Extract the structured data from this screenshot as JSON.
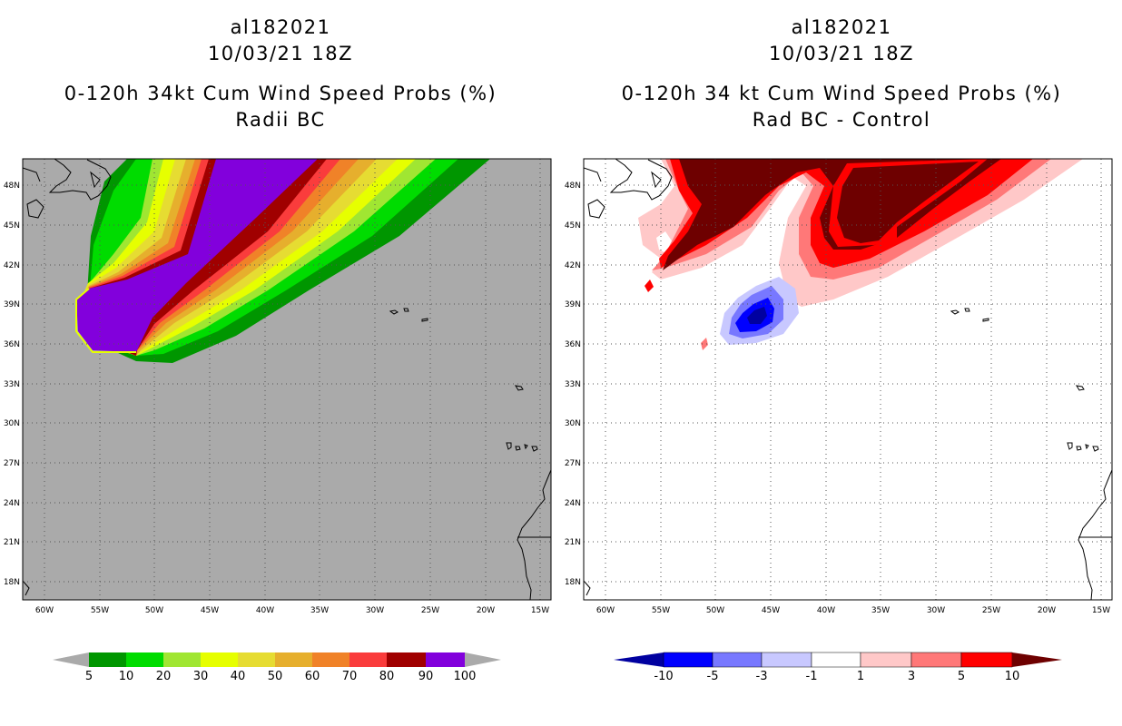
{
  "panels": [
    {
      "title_line1": "al182021",
      "title_line2": "10/03/21 18Z",
      "title_line3": "0-120h 34kt Cum Wind Speed Probs (%)",
      "title_line4": "Radii BC"
    },
    {
      "title_line1": "al182021",
      "title_line2": "10/03/21 18Z",
      "title_line3": "0-120h 34 kt Cum Wind Speed Probs (%)",
      "title_line4": "Rad BC - Control"
    }
  ],
  "colors": {
    "background_gray": "#aaaaaa",
    "prob_scale": [
      "#009600",
      "#00dc00",
      "#a0e632",
      "#e6ff00",
      "#e6dc32",
      "#e6af2d",
      "#f08228",
      "#fa3c3c",
      "#a00000",
      "#8200dc"
    ],
    "diff_scale": [
      "#0000a0",
      "#0000ff",
      "#7878ff",
      "#c8c8ff",
      "#ffffff",
      "#ffc8c8",
      "#ff7878",
      "#ff0000",
      "#6e0000"
    ]
  },
  "chart_data": [
    {
      "type": "heatmap",
      "title": "0-120h 34kt Cum Wind Speed Probs (%) Radii BC",
      "x_ticks": [
        "60W",
        "55W",
        "50W",
        "45W",
        "40W",
        "35W",
        "30W",
        "25W",
        "20W",
        "15W"
      ],
      "y_ticks": [
        "48N",
        "45N",
        "42N",
        "39N",
        "36N",
        "33N",
        "30N",
        "27N",
        "24N",
        "21N",
        "18N"
      ],
      "xlim": [
        -62,
        -15
      ],
      "ylim": [
        17,
        50
      ],
      "colorbar_labels": [
        "5",
        "10",
        "20",
        "30",
        "40",
        "50",
        "60",
        "70",
        "80",
        "90",
        "100"
      ]
    },
    {
      "type": "heatmap",
      "title": "0-120h 34 kt Cum Wind Speed Probs (%) Rad BC - Control",
      "x_ticks": [
        "60W",
        "55W",
        "50W",
        "45W",
        "40W",
        "35W",
        "30W",
        "25W",
        "20W",
        "15W"
      ],
      "y_ticks": [
        "48N",
        "45N",
        "42N",
        "39N",
        "36N",
        "33N",
        "30N",
        "27N",
        "24N",
        "21N",
        "18N"
      ],
      "xlim": [
        -62,
        -15
      ],
      "ylim": [
        17,
        50
      ],
      "colorbar_labels": [
        "-10",
        "-5",
        "-3",
        "-1",
        "1",
        "3",
        "5",
        "10"
      ]
    }
  ]
}
